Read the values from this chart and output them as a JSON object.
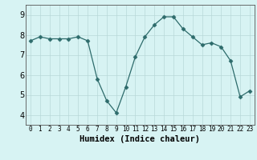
{
  "x": [
    0,
    1,
    2,
    3,
    4,
    5,
    6,
    7,
    8,
    9,
    10,
    11,
    12,
    13,
    14,
    15,
    16,
    17,
    18,
    19,
    20,
    21,
    22,
    23
  ],
  "y": [
    7.7,
    7.9,
    7.8,
    7.8,
    7.8,
    7.9,
    7.7,
    5.8,
    4.7,
    4.1,
    5.4,
    6.9,
    7.9,
    8.5,
    8.9,
    8.9,
    8.3,
    7.9,
    7.5,
    7.6,
    7.4,
    6.7,
    4.9,
    5.2
  ],
  "xlabel": "Humidex (Indice chaleur)",
  "xlim": [
    -0.5,
    23.5
  ],
  "ylim": [
    3.5,
    9.5
  ],
  "yticks": [
    4,
    5,
    6,
    7,
    8,
    9
  ],
  "xticks": [
    0,
    1,
    2,
    3,
    4,
    5,
    6,
    7,
    8,
    9,
    10,
    11,
    12,
    13,
    14,
    15,
    16,
    17,
    18,
    19,
    20,
    21,
    22,
    23
  ],
  "xtick_labels": [
    "0",
    "1",
    "2",
    "3",
    "4",
    "5",
    "6",
    "7",
    "8",
    "9",
    "10",
    "11",
    "12",
    "13",
    "14",
    "15",
    "16",
    "17",
    "18",
    "19",
    "20",
    "21",
    "22",
    "23"
  ],
  "line_color": "#2d6b6b",
  "marker": "D",
  "marker_size": 2.5,
  "bg_color": "#d7f3f3",
  "grid_color": "#b8d8d8",
  "tick_fontsize_x": 5.5,
  "tick_fontsize_y": 7.0,
  "xlabel_fontsize": 7.5
}
